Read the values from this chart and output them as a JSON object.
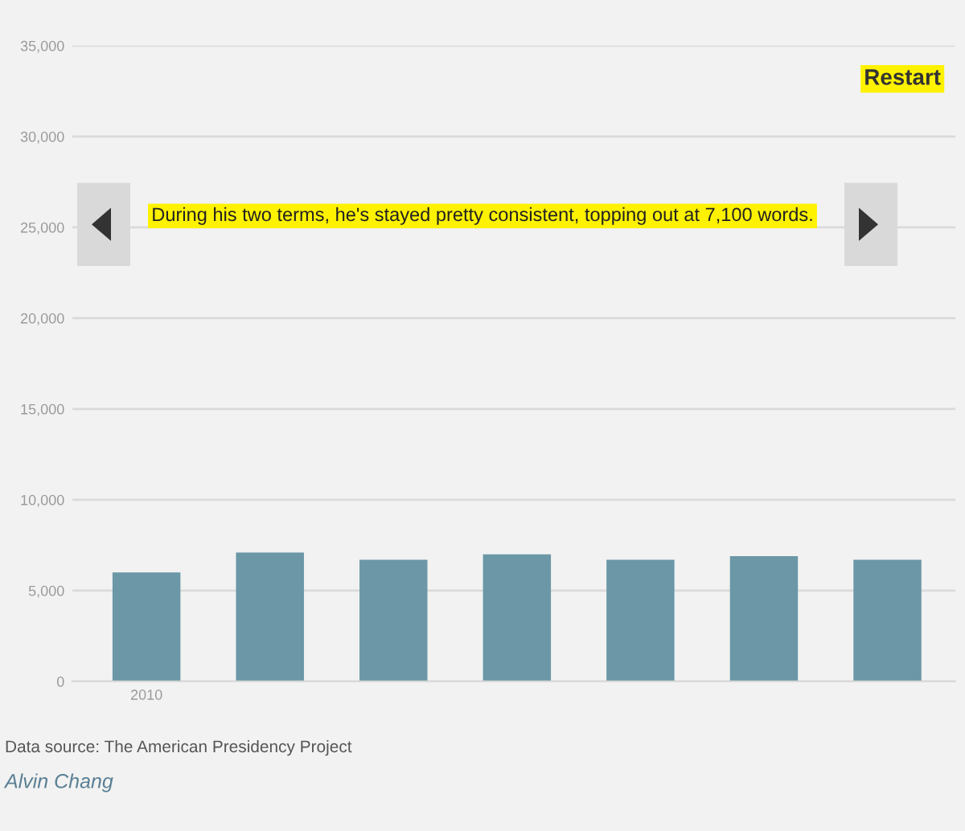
{
  "chart_data": {
    "type": "bar",
    "categories": [
      "2010",
      null,
      null,
      null,
      null,
      null,
      null
    ],
    "values": [
      6000,
      7100,
      6700,
      7000,
      6700,
      6900,
      6700
    ],
    "color": "#6b97a7",
    "ylim": [
      0,
      35000
    ],
    "yticks": [
      0,
      {
        "value": 5000,
        "label": "5,000"
      },
      {
        "value": 10000,
        "label": "10,000"
      },
      {
        "value": 15000,
        "label": "15,000"
      },
      {
        "value": 20000,
        "label": "20,000"
      },
      {
        "value": 25000,
        "label": "25,000"
      },
      {
        "value": 30000,
        "label": "30,000"
      },
      {
        "value": 35000,
        "label": "35,000"
      }
    ],
    "grid": "y",
    "legend": false,
    "annotations": [
      "During his two terms, he's stayed pretty consistent, topping out at 7,100 words.",
      "Restart",
      "Data source: The American Presidency Project",
      "Alvin Chang"
    ]
  }
}
